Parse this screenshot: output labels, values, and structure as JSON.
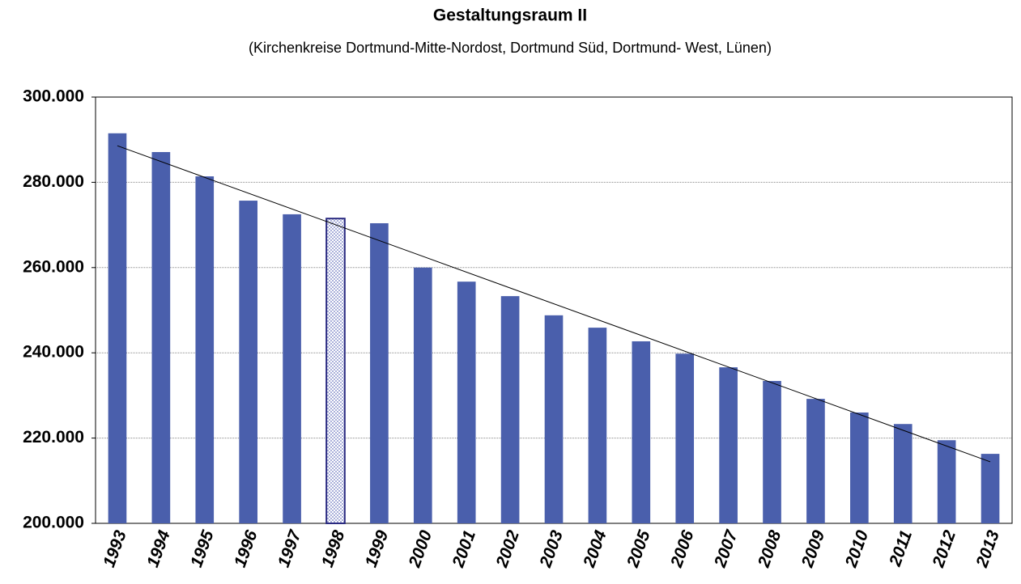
{
  "chart_data": {
    "type": "bar",
    "title": "Gestaltungsraum II",
    "subtitle": "(Kirchenkreise Dortmund-Mitte-Nordost, Dortmund Süd, Dortmund- West, Lünen)",
    "categories": [
      "1993",
      "1994",
      "1995",
      "1996",
      "1997",
      "1998",
      "1999",
      "2000",
      "2001",
      "2002",
      "2003",
      "2004",
      "2005",
      "2006",
      "2007",
      "2008",
      "2009",
      "2010",
      "2011",
      "2012",
      "2013"
    ],
    "values": [
      291500,
      287100,
      281400,
      275700,
      272500,
      271500,
      270400,
      260000,
      256700,
      253300,
      248800,
      245900,
      242700,
      239800,
      236600,
      233400,
      229200,
      226000,
      223300,
      219500,
      216300
    ],
    "color": "#4a5fac",
    "highlight": "1998",
    "trendline": true,
    "ylim": [
      200000,
      300000
    ],
    "yticks": [
      {
        "value": 200000,
        "label": "200.000"
      },
      {
        "value": 220000,
        "label": "220.000"
      },
      {
        "value": 240000,
        "label": "240.000"
      },
      {
        "value": 260000,
        "label": "260.000"
      },
      {
        "value": 280000,
        "label": "280.000"
      },
      {
        "value": 300000,
        "label": "300.000"
      }
    ],
    "grid": true
  }
}
